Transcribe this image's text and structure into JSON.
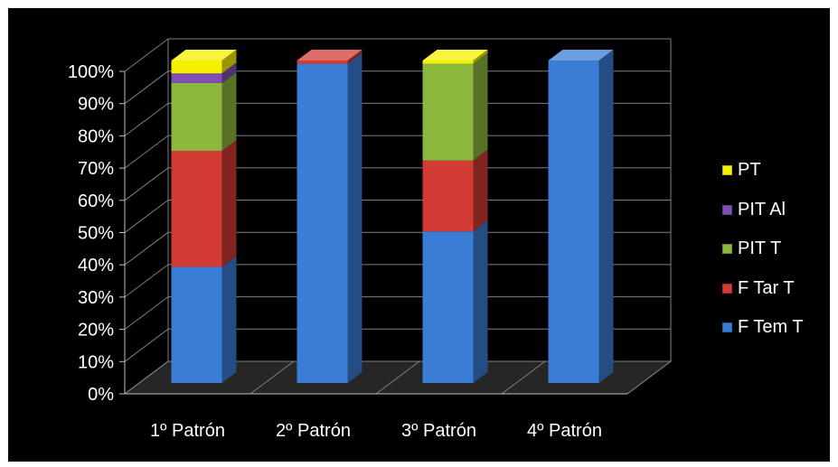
{
  "chart_data": {
    "type": "bar",
    "stacked": true,
    "three_d": true,
    "categories": [
      "1º Patrón",
      "2º Patrón",
      "3º Patrón",
      "4º Patrón"
    ],
    "series": [
      {
        "name": "F Tem T",
        "color": "#3A7DD4",
        "values": [
          36,
          99,
          47,
          100
        ]
      },
      {
        "name": "F Tar T",
        "color": "#D23C35",
        "values": [
          36,
          1,
          22,
          0
        ]
      },
      {
        "name": "PIT T",
        "color": "#8DB83D",
        "values": [
          21,
          0,
          30,
          0
        ]
      },
      {
        "name": "PIT Al",
        "color": "#7F4FB4",
        "values": [
          3,
          0,
          0,
          0
        ]
      },
      {
        "name": "PT",
        "color": "#F4F000",
        "values": [
          4,
          0,
          1,
          0
        ]
      }
    ],
    "ylim": [
      0,
      100
    ],
    "yticks": [
      "0%",
      "10%",
      "20%",
      "30%",
      "40%",
      "50%",
      "60%",
      "70%",
      "80%",
      "90%",
      "100%"
    ],
    "grid": true,
    "legend_position": "right",
    "background": "#000000",
    "text_color": "#FFFFFF"
  },
  "legend": {
    "items": [
      {
        "label": "PT",
        "color": "#F4F000"
      },
      {
        "label": "PIT Al",
        "color": "#7F4FB4"
      },
      {
        "label": "PIT T",
        "color": "#8DB83D"
      },
      {
        "label": "F Tar T",
        "color": "#D23C35"
      },
      {
        "label": "F Tem T",
        "color": "#3A7DD4"
      }
    ]
  }
}
